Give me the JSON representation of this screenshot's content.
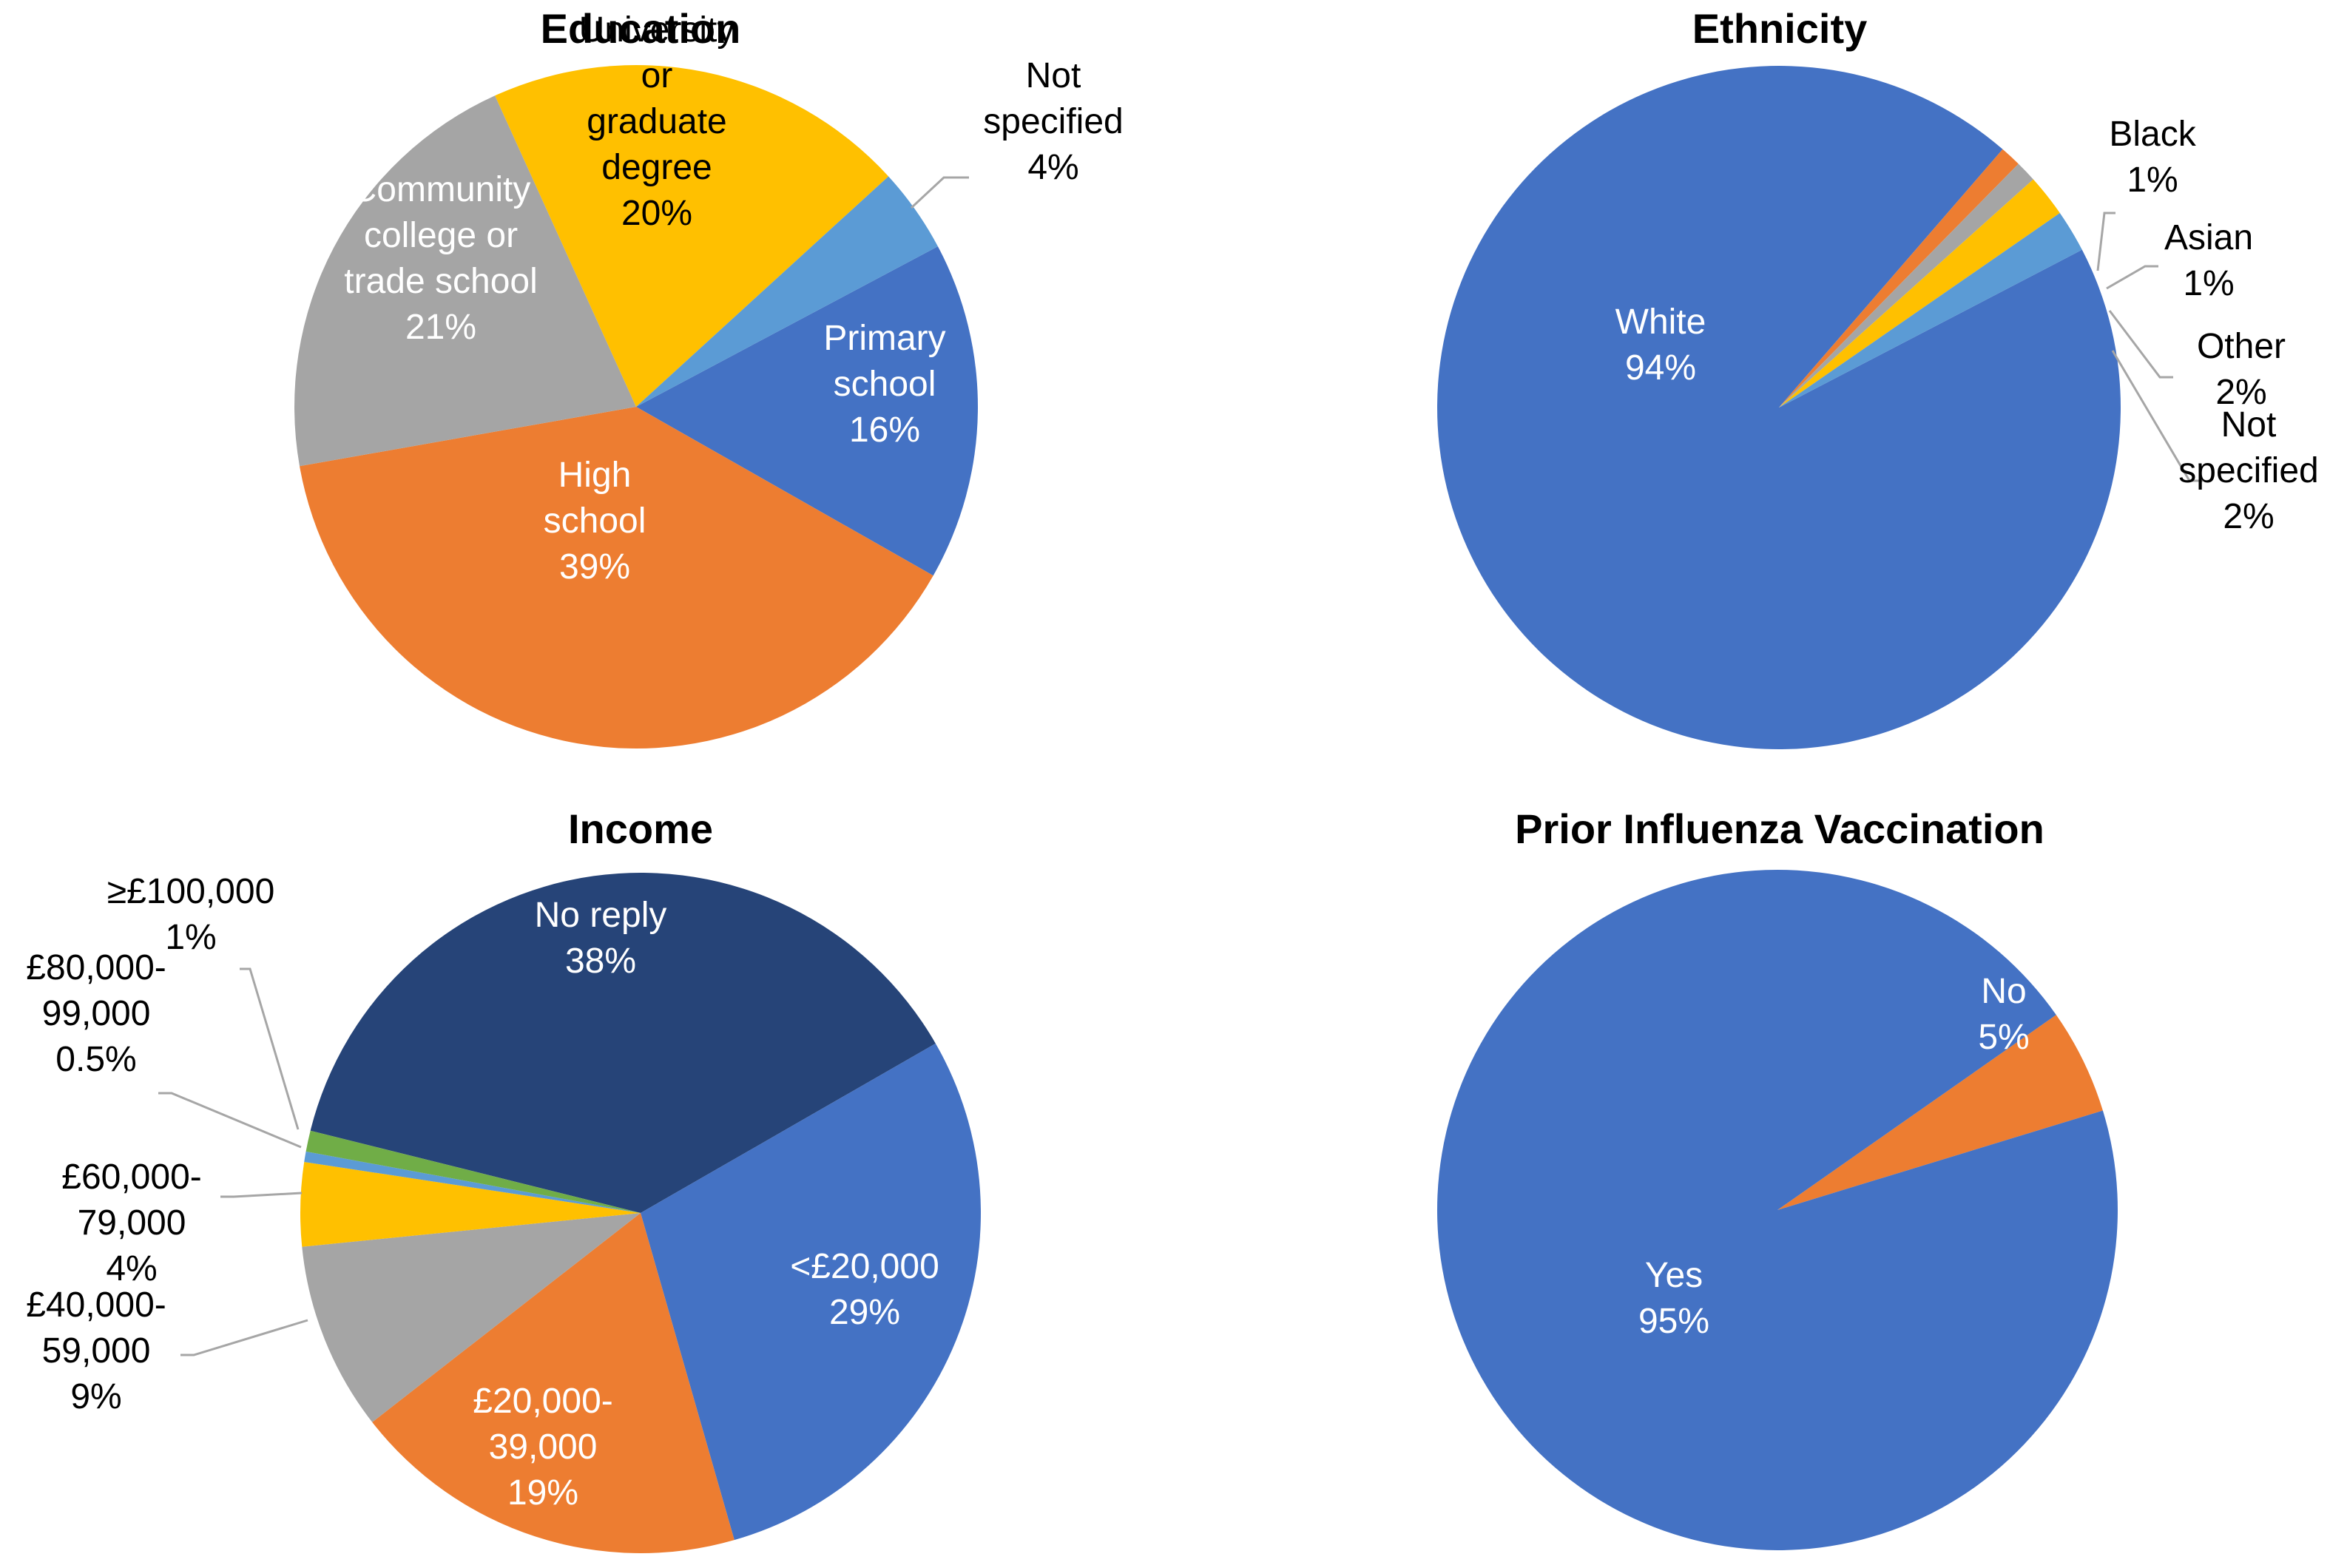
{
  "chart_data": [
    {
      "type": "pie",
      "title": "Education",
      "slices": [
        {
          "name": "Primary school",
          "lines": [
            "Primary",
            "school",
            "16%"
          ],
          "value": 16,
          "color": "#4472C4",
          "label_color": "#FFFFFF"
        },
        {
          "name": "High school",
          "lines": [
            "High",
            "school",
            "39%"
          ],
          "value": 39,
          "color": "#ED7D31",
          "label_color": "#FFFFFF"
        },
        {
          "name": "Community college or trade school",
          "lines": [
            "Community",
            "college or",
            "trade school",
            "21%"
          ],
          "value": 21,
          "color": "#A5A5A5",
          "label_color": "#FFFFFF"
        },
        {
          "name": "University or graduate degree",
          "lines": [
            "University",
            "or",
            "graduate",
            "degree",
            "20%"
          ],
          "value": 20,
          "color": "#FFC000",
          "label_color": "#000000"
        },
        {
          "name": "Not specified",
          "lines": [
            "Not",
            "specified",
            "4%"
          ],
          "value": 4,
          "color": "#5B9BD5",
          "label_color": "#000000",
          "leader": true
        }
      ]
    },
    {
      "type": "pie",
      "title": "Ethnicity",
      "slices": [
        {
          "name": "White",
          "lines": [
            "White",
            "94%"
          ],
          "value": 94,
          "color": "#4472C4",
          "label_color": "#FFFFFF"
        },
        {
          "name": "Black",
          "lines": [
            "Black",
            "1%"
          ],
          "value": 1,
          "color": "#ED7D31",
          "label_color": "#000000",
          "leader": true
        },
        {
          "name": "Asian",
          "lines": [
            "Asian",
            "1%"
          ],
          "value": 1,
          "color": "#A5A5A5",
          "label_color": "#000000",
          "leader": true
        },
        {
          "name": "Other",
          "lines": [
            "Other",
            "2%"
          ],
          "value": 2,
          "color": "#FFC000",
          "label_color": "#000000",
          "leader": true
        },
        {
          "name": "Not specified",
          "lines": [
            "Not",
            "specified",
            "2%"
          ],
          "value": 2,
          "color": "#5B9BD5",
          "label_color": "#000000",
          "leader": true
        }
      ]
    },
    {
      "type": "pie",
      "title": "Income",
      "slices": [
        {
          "name": "No reply",
          "lines": [
            "No reply",
            "38%"
          ],
          "value": 38,
          "color": "#264478",
          "label_color": "#FFFFFF"
        },
        {
          "name": "<£20,000",
          "lines": [
            "<£20,000",
            "29%"
          ],
          "value": 29,
          "color": "#4472C4",
          "label_color": "#FFFFFF"
        },
        {
          "name": "£20,000-39,000",
          "lines": [
            "£20,000-",
            "39,000",
            "19%"
          ],
          "value": 19,
          "color": "#ED7D31",
          "label_color": "#FFFFFF"
        },
        {
          "name": "£40,000-59,000",
          "lines": [
            "£40,000-",
            "59,000",
            "9%"
          ],
          "value": 9,
          "color": "#A5A5A5",
          "label_color": "#000000",
          "leader": true
        },
        {
          "name": "£60,000-79,000",
          "lines": [
            "£60,000-",
            "79,000",
            "4%"
          ],
          "value": 4,
          "color": "#FFC000",
          "label_color": "#000000",
          "leader": true
        },
        {
          "name": "£80,000-99,000",
          "lines": [
            "£80,000-",
            "99,000",
            "0.5%"
          ],
          "value": 0.5,
          "color": "#5B9BD5",
          "label_color": "#000000",
          "leader": true
        },
        {
          "name": "≥£100,000",
          "lines": [
            "≥£100,000",
            "1%"
          ],
          "value": 1,
          "color": "#70AD47",
          "label_color": "#000000",
          "leader": true
        }
      ]
    },
    {
      "type": "pie",
      "title": "Prior Influenza Vaccination",
      "slices": [
        {
          "name": "No",
          "lines": [
            "No",
            "5%"
          ],
          "value": 5,
          "color": "#ED7D31",
          "label_color": "#FFFFFF"
        },
        {
          "name": "Yes",
          "lines": [
            "Yes",
            "95%"
          ],
          "value": 95,
          "color": "#4472C4",
          "label_color": "#FFFFFF"
        }
      ]
    }
  ]
}
